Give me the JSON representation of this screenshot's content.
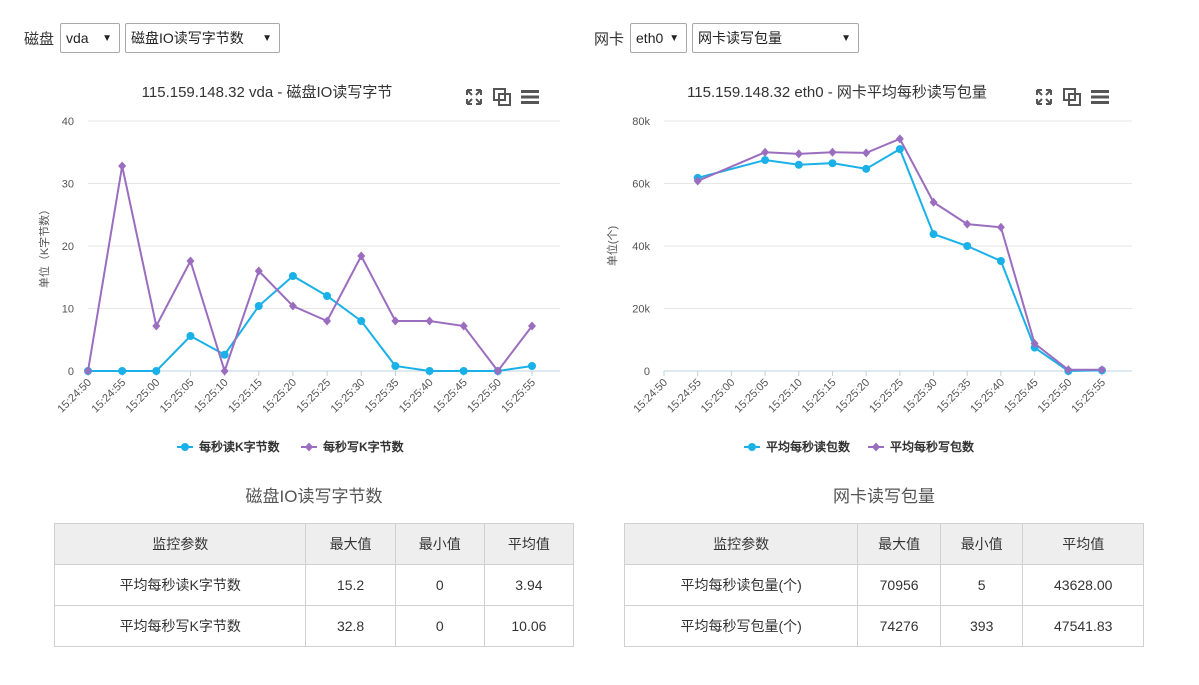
{
  "left": {
    "controls": {
      "label": "磁盘",
      "select1": "vda",
      "select2": "磁盘IO读写字节数"
    },
    "chart_data": {
      "type": "line",
      "title": "115.159.148.32 vda - 磁盘IO读写字节",
      "ylabel": "单位（K字节数）",
      "xlabel": "",
      "ylim": [
        0,
        40
      ],
      "yticks": [
        "0",
        "10",
        "20",
        "30",
        "40"
      ],
      "yticks_values": [
        0,
        10,
        20,
        30,
        40
      ],
      "categories": [
        "15:24:50",
        "15:24:55",
        "15:25:00",
        "15:25:05",
        "15:25:10",
        "15:25:15",
        "15:25:20",
        "15:25:25",
        "15:25:30",
        "15:25:35",
        "15:25:40",
        "15:25:45",
        "15:25:50",
        "15:25:55"
      ],
      "series": [
        {
          "name": "每秒读K字节数",
          "color": "#1ab0e8",
          "marker": "circle",
          "values": [
            0,
            0,
            0,
            5.6,
            2.6,
            10.4,
            15.2,
            12.0,
            8.0,
            0.8,
            0,
            0,
            0,
            0.8
          ]
        },
        {
          "name": "每秒写K字节数",
          "color": "#9b6dbf",
          "marker": "diamond",
          "values": [
            0,
            32.8,
            7.2,
            17.6,
            0,
            16.0,
            10.4,
            8.0,
            18.4,
            8.0,
            8.0,
            7.2,
            0,
            7.2
          ]
        }
      ],
      "grid": true,
      "legend": "bottom-center"
    },
    "subtitle": "磁盘IO读写字节数",
    "table": {
      "headers": [
        "监控参数",
        "最大值",
        "最小值",
        "平均值"
      ],
      "rows": [
        [
          "平均每秒读K字节数",
          "15.2",
          "0",
          "3.94"
        ],
        [
          "平均每秒写K字节数",
          "32.8",
          "0",
          "10.06"
        ]
      ]
    }
  },
  "right": {
    "controls": {
      "label": "网卡",
      "select1": "eth0",
      "select2": "网卡读写包量"
    },
    "chart_data": {
      "type": "line",
      "title": "115.159.148.32 eth0 - 网卡平均每秒读写包量",
      "ylabel": "单位(个)",
      "xlabel": "",
      "ylim": [
        0,
        80000
      ],
      "yticks": [
        "0",
        "20k",
        "40k",
        "60k",
        "80k"
      ],
      "yticks_values": [
        0,
        20000,
        40000,
        60000,
        80000
      ],
      "categories": [
        "15:24:50",
        "15:24:55",
        "15:25:00",
        "15:25:05",
        "15:25:10",
        "15:25:15",
        "15:25:20",
        "15:25:25",
        "15:25:30",
        "15:25:35",
        "15:25:40",
        "15:25:45",
        "15:25:50",
        "15:25:55"
      ],
      "series": [
        {
          "name": "平均每秒读包数",
          "color": "#1ab0e8",
          "marker": "circle",
          "values": [
            null,
            61800,
            null,
            67500,
            66000,
            66500,
            64700,
            71000,
            43800,
            40000,
            35200,
            7500,
            5,
            200
          ]
        },
        {
          "name": "平均每秒写包数",
          "color": "#9b6dbf",
          "marker": "diamond",
          "values": [
            null,
            60800,
            null,
            70000,
            69500,
            70000,
            69800,
            74276,
            54000,
            47000,
            46000,
            8800,
            400,
            393
          ]
        }
      ],
      "grid": true,
      "legend": "bottom-center"
    },
    "subtitle": "网卡读写包量",
    "table": {
      "headers": [
        "监控参数",
        "最大值",
        "最小值",
        "平均值"
      ],
      "rows": [
        [
          "平均每秒读包量(个)",
          "70956",
          "5",
          "43628.00"
        ],
        [
          "平均每秒写包量(个)",
          "74276",
          "393",
          "47541.83"
        ]
      ]
    }
  }
}
